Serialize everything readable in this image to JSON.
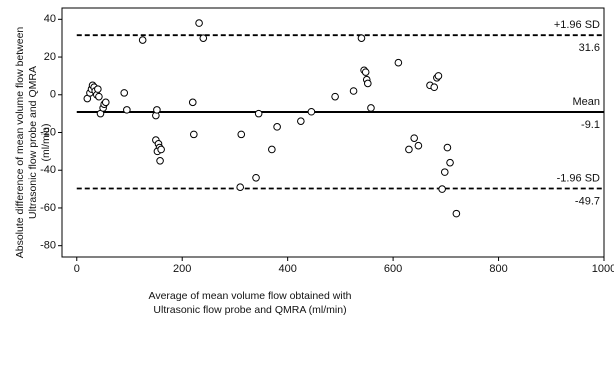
{
  "chart_data": {
    "type": "scatter",
    "x_label": [
      "Average of mean volume flow obtained with",
      "Ultrasonic flow probe and  QMRA (ml/min)"
    ],
    "y_label": [
      "Absolute difference of mean volume flow between",
      "Ultrasonic flow probe  and QMRA",
      "(ml/min)"
    ],
    "xlim": [
      -28,
      1000
    ],
    "ylim": [
      -86,
      46
    ],
    "xticks": [
      0,
      200,
      400,
      600,
      800,
      1000
    ],
    "yticks": [
      40,
      20,
      0,
      -20,
      -40,
      -60,
      -80
    ],
    "marker_color": "#000000",
    "x": [
      20,
      25,
      28,
      30,
      33,
      35,
      38,
      40,
      42,
      45,
      50,
      52,
      55,
      90,
      95,
      125,
      150,
      152,
      150,
      155,
      157,
      153,
      160,
      158,
      220,
      222,
      232,
      240,
      310,
      312,
      340,
      345,
      370,
      380,
      425,
      445,
      490,
      525,
      540,
      545,
      548,
      550,
      552,
      558,
      610,
      630,
      640,
      648,
      670,
      678,
      683,
      686,
      693,
      698,
      703,
      708,
      720
    ],
    "y": [
      -2,
      1,
      3,
      5,
      4,
      2,
      0,
      3,
      -1,
      -10,
      -7,
      -5,
      -4,
      1,
      -8,
      29,
      -11,
      -8,
      -24,
      -26,
      -28,
      -30,
      -29,
      -35,
      -4,
      -21,
      38,
      30,
      -49,
      -21,
      -44,
      -10,
      -29,
      -17,
      -14,
      -9,
      -1,
      2,
      30,
      13,
      12,
      8,
      6,
      -7,
      17,
      -29,
      -23,
      -27,
      5,
      4,
      9,
      10,
      -50,
      -41,
      -28,
      -36,
      -63
    ],
    "reference_lines": [
      {
        "name": "+1.96 SD",
        "value": 31.6,
        "style": "dashed"
      },
      {
        "name": "Mean",
        "value": -9.1,
        "style": "solid"
      },
      {
        "name": "-1.96 SD",
        "value": -49.7,
        "style": "dashed"
      }
    ]
  }
}
